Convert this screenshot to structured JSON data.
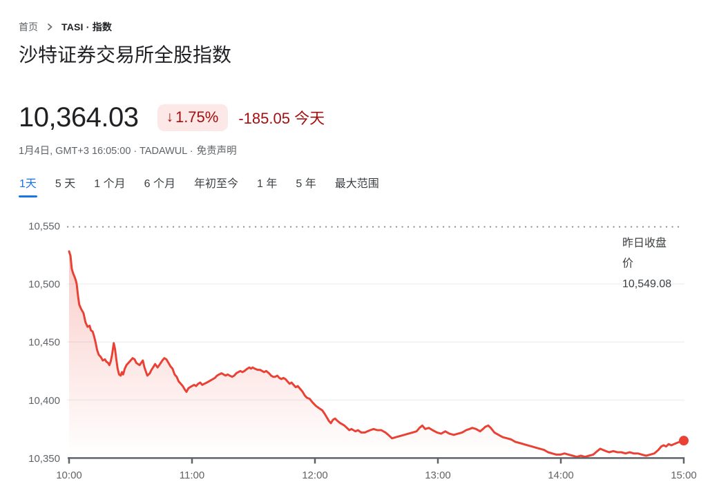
{
  "breadcrumb": {
    "home": "首页",
    "current": "TASI · 指数"
  },
  "title": "沙特证券交易所全股指数",
  "quote": {
    "price": "10,364.03",
    "down_arrow": "↓",
    "change_percent": "1.75%",
    "change_text": "-185.05 今天",
    "meta": "1月4日, GMT+3 16:05:00 · TADAWUL ·",
    "disclaimer": "免责声明"
  },
  "tabs": [
    {
      "id": "1d",
      "label": "1天",
      "active": true
    },
    {
      "id": "5d",
      "label": "5 天",
      "active": false
    },
    {
      "id": "1m",
      "label": "1 个月",
      "active": false
    },
    {
      "id": "6m",
      "label": "6 个月",
      "active": false
    },
    {
      "id": "ytd",
      "label": "年初至今",
      "active": false
    },
    {
      "id": "1y",
      "label": "1 年",
      "active": false
    },
    {
      "id": "5y",
      "label": "5 年",
      "active": false
    },
    {
      "id": "max",
      "label": "最大范围",
      "active": false
    }
  ],
  "chart_data": {
    "type": "line",
    "x_axis": {
      "tick_labels": [
        "10:00",
        "11:00",
        "12:00",
        "13:00",
        "14:00",
        "15:00"
      ],
      "minutes_span": 300
    },
    "y_axis": {
      "ticks": [
        {
          "label": "10,550",
          "value": 10550
        },
        {
          "label": "10,500",
          "value": 10500
        },
        {
          "label": "10,450",
          "value": 10450
        },
        {
          "label": "10,400",
          "value": 10400
        },
        {
          "label": "10,350",
          "value": 10350
        }
      ],
      "min": 10350,
      "max": 10550
    },
    "grid": "horizontal",
    "legend": "none",
    "previous_close": {
      "value": 10549.08,
      "annotation_lines": [
        "昨日收盘",
        "价",
        "10,549.08"
      ]
    },
    "last_point_value": 10364.03,
    "series": [
      {
        "name": "TASI",
        "color": "#e94235",
        "points": [
          [
            0,
            10528
          ],
          [
            0.7,
            10524
          ],
          [
            1.3,
            10513
          ],
          [
            2,
            10509
          ],
          [
            2.7,
            10506
          ],
          [
            3.3,
            10503
          ],
          [
            3.7,
            10500
          ],
          [
            4.4,
            10489
          ],
          [
            5,
            10482
          ],
          [
            6,
            10478
          ],
          [
            7,
            10475
          ],
          [
            7.5,
            10471
          ],
          [
            8,
            10467
          ],
          [
            9,
            10463
          ],
          [
            10,
            10464
          ],
          [
            10.7,
            10460
          ],
          [
            11.5,
            10459
          ],
          [
            12.2,
            10455
          ],
          [
            13,
            10449
          ],
          [
            13.7,
            10443
          ],
          [
            14.5,
            10439
          ],
          [
            15.5,
            10437
          ],
          [
            16.5,
            10434
          ],
          [
            17.5,
            10435
          ],
          [
            18.2,
            10433
          ],
          [
            19,
            10432
          ],
          [
            19.7,
            10430
          ],
          [
            20.3,
            10433
          ],
          [
            21,
            10439
          ],
          [
            21.8,
            10449
          ],
          [
            22.4,
            10444
          ],
          [
            23,
            10436
          ],
          [
            23.7,
            10427
          ],
          [
            24.4,
            10422
          ],
          [
            25.2,
            10421
          ],
          [
            25.8,
            10424
          ],
          [
            26.4,
            10422
          ],
          [
            27.2,
            10427
          ],
          [
            28,
            10430
          ],
          [
            29,
            10432
          ],
          [
            30,
            10434
          ],
          [
            31,
            10436
          ],
          [
            32,
            10435
          ],
          [
            32.8,
            10432
          ],
          [
            33.6,
            10431
          ],
          [
            34.4,
            10430
          ],
          [
            35.2,
            10432
          ],
          [
            36,
            10434
          ],
          [
            36.8,
            10428
          ],
          [
            37.6,
            10424
          ],
          [
            38.2,
            10421
          ],
          [
            38.8,
            10422
          ],
          [
            39.4,
            10423
          ],
          [
            40.2,
            10426
          ],
          [
            41,
            10428
          ],
          [
            42,
            10431
          ],
          [
            43.2,
            10428
          ],
          [
            44.4,
            10431
          ],
          [
            45.5,
            10434
          ],
          [
            46.5,
            10436
          ],
          [
            47.5,
            10435
          ],
          [
            48.5,
            10432
          ],
          [
            49.5,
            10429
          ],
          [
            50.5,
            10427
          ],
          [
            51.5,
            10422
          ],
          [
            52.5,
            10420
          ],
          [
            53.5,
            10416
          ],
          [
            54.5,
            10414
          ],
          [
            55.5,
            10412
          ],
          [
            56.5,
            10409
          ],
          [
            57.3,
            10407
          ],
          [
            58.2,
            10410
          ],
          [
            59,
            10411
          ],
          [
            60,
            10412
          ],
          [
            61,
            10413
          ],
          [
            62,
            10412
          ],
          [
            63,
            10414
          ],
          [
            64,
            10415
          ],
          [
            65,
            10413
          ],
          [
            66,
            10414
          ],
          [
            67.2,
            10415
          ],
          [
            68.2,
            10416
          ],
          [
            69.2,
            10417
          ],
          [
            70.2,
            10418
          ],
          [
            71.2,
            10419
          ],
          [
            72.2,
            10421
          ],
          [
            73.2,
            10422
          ],
          [
            74.4,
            10423
          ],
          [
            75.4,
            10422
          ],
          [
            76.4,
            10421
          ],
          [
            77.4,
            10422
          ],
          [
            78.4,
            10421
          ],
          [
            79.6,
            10420
          ],
          [
            80.6,
            10421
          ],
          [
            81.6,
            10423
          ],
          [
            82.6,
            10424
          ],
          [
            83.6,
            10425
          ],
          [
            84.6,
            10424
          ],
          [
            85.6,
            10425
          ],
          [
            87,
            10427
          ],
          [
            88,
            10428
          ],
          [
            88.8,
            10427
          ],
          [
            89.6,
            10428
          ],
          [
            90.6,
            10427
          ],
          [
            92,
            10426
          ],
          [
            93.2,
            10426
          ],
          [
            94.2,
            10425
          ],
          [
            95.2,
            10424
          ],
          [
            96.2,
            10425
          ],
          [
            97.6,
            10423
          ],
          [
            98.6,
            10421
          ],
          [
            99.6,
            10420
          ],
          [
            100.6,
            10420
          ],
          [
            101.6,
            10421
          ],
          [
            102.6,
            10419
          ],
          [
            103.6,
            10418
          ],
          [
            104.6,
            10419
          ],
          [
            105.6,
            10418
          ],
          [
            106.6,
            10416
          ],
          [
            107.6,
            10414
          ],
          [
            108.6,
            10415
          ],
          [
            109.6,
            10413
          ],
          [
            110.6,
            10411
          ],
          [
            111.6,
            10412
          ],
          [
            112.6,
            10410
          ],
          [
            114,
            10407
          ],
          [
            115,
            10404
          ],
          [
            116,
            10402
          ],
          [
            117.4,
            10401
          ],
          [
            118.8,
            10398
          ],
          [
            120.4,
            10395
          ],
          [
            122,
            10393
          ],
          [
            123.6,
            10391
          ],
          [
            124.8,
            10388
          ],
          [
            125.8,
            10385
          ],
          [
            126.8,
            10382
          ],
          [
            127.8,
            10380
          ],
          [
            128.8,
            10383
          ],
          [
            129.8,
            10384
          ],
          [
            131,
            10382
          ],
          [
            132.4,
            10380
          ],
          [
            133.4,
            10379
          ],
          [
            134.4,
            10378
          ],
          [
            135.6,
            10376
          ],
          [
            136.8,
            10374
          ],
          [
            137.8,
            10375
          ],
          [
            138.8,
            10374
          ],
          [
            139.8,
            10373
          ],
          [
            141,
            10374
          ],
          [
            142.6,
            10372
          ],
          [
            144.4,
            10372
          ],
          [
            145.6,
            10373
          ],
          [
            147,
            10374
          ],
          [
            148.6,
            10375
          ],
          [
            150.4,
            10374
          ],
          [
            152.4,
            10374
          ],
          [
            154.4,
            10372
          ],
          [
            155.8,
            10370
          ],
          [
            157.6,
            10367
          ],
          [
            159.6,
            10368
          ],
          [
            161.6,
            10369
          ],
          [
            163.6,
            10370
          ],
          [
            165.6,
            10371
          ],
          [
            167.6,
            10372
          ],
          [
            169.6,
            10373
          ],
          [
            171,
            10376
          ],
          [
            172.4,
            10378
          ],
          [
            173.8,
            10375
          ],
          [
            175.6,
            10376
          ],
          [
            177.4,
            10374
          ],
          [
            179.6,
            10372
          ],
          [
            181.6,
            10371
          ],
          [
            183.6,
            10373
          ],
          [
            185.6,
            10371
          ],
          [
            187.8,
            10370
          ],
          [
            189.8,
            10371
          ],
          [
            191.8,
            10372
          ],
          [
            193.8,
            10374
          ],
          [
            195.4,
            10375
          ],
          [
            196.8,
            10376
          ],
          [
            198.6,
            10375
          ],
          [
            200.6,
            10373
          ],
          [
            202,
            10375
          ],
          [
            203.2,
            10377
          ],
          [
            204.6,
            10378
          ],
          [
            205.8,
            10376
          ],
          [
            207.6,
            10372
          ],
          [
            209.6,
            10370
          ],
          [
            211.6,
            10368
          ],
          [
            213.8,
            10367
          ],
          [
            215.8,
            10366
          ],
          [
            217.8,
            10364
          ],
          [
            219.8,
            10363
          ],
          [
            221.8,
            10362
          ],
          [
            223.8,
            10361
          ],
          [
            225.8,
            10360
          ],
          [
            227.8,
            10359
          ],
          [
            229.8,
            10358
          ],
          [
            231.8,
            10357
          ],
          [
            233.8,
            10355
          ],
          [
            235.8,
            10354
          ],
          [
            237.8,
            10353
          ],
          [
            239.8,
            10353
          ],
          [
            241.8,
            10354
          ],
          [
            243.8,
            10353
          ],
          [
            245.8,
            10352
          ],
          [
            247.8,
            10351
          ],
          [
            249.8,
            10352
          ],
          [
            251.8,
            10351
          ],
          [
            253.8,
            10352
          ],
          [
            255.8,
            10353
          ],
          [
            257.8,
            10356
          ],
          [
            259.2,
            10358
          ],
          [
            260.6,
            10357
          ],
          [
            262,
            10356
          ],
          [
            263.6,
            10355
          ],
          [
            265.6,
            10356
          ],
          [
            267.6,
            10355
          ],
          [
            269.6,
            10355
          ],
          [
            271.6,
            10354
          ],
          [
            273.6,
            10355
          ],
          [
            275.6,
            10354
          ],
          [
            277.6,
            10354
          ],
          [
            279.6,
            10353
          ],
          [
            281.6,
            10352
          ],
          [
            283.6,
            10353
          ],
          [
            285.6,
            10354
          ],
          [
            287.6,
            10357
          ],
          [
            289,
            10360
          ],
          [
            290.2,
            10361
          ],
          [
            291.4,
            10360
          ],
          [
            292.6,
            10362
          ],
          [
            294,
            10361
          ],
          [
            295.2,
            10362
          ],
          [
            296.6,
            10363
          ],
          [
            298,
            10364
          ],
          [
            300,
            10365
          ]
        ]
      }
    ],
    "colors": {
      "line": "#e94235",
      "fill_top": "rgba(233,66,53,0.30)",
      "fill_bottom": "rgba(233,66,53,0)",
      "grid": "#e9eaec",
      "axis": "#5f6368",
      "dotted_prev_close": "#80868b",
      "tick_text": "#5f6368",
      "annotation_text": "#3c4043"
    }
  },
  "colors": {
    "accent_blue": "#1a73e8",
    "negative_red": "#a50e0e",
    "badge_bg": "#fce8e6",
    "text_primary": "#202124",
    "text_secondary": "#5f6368"
  }
}
